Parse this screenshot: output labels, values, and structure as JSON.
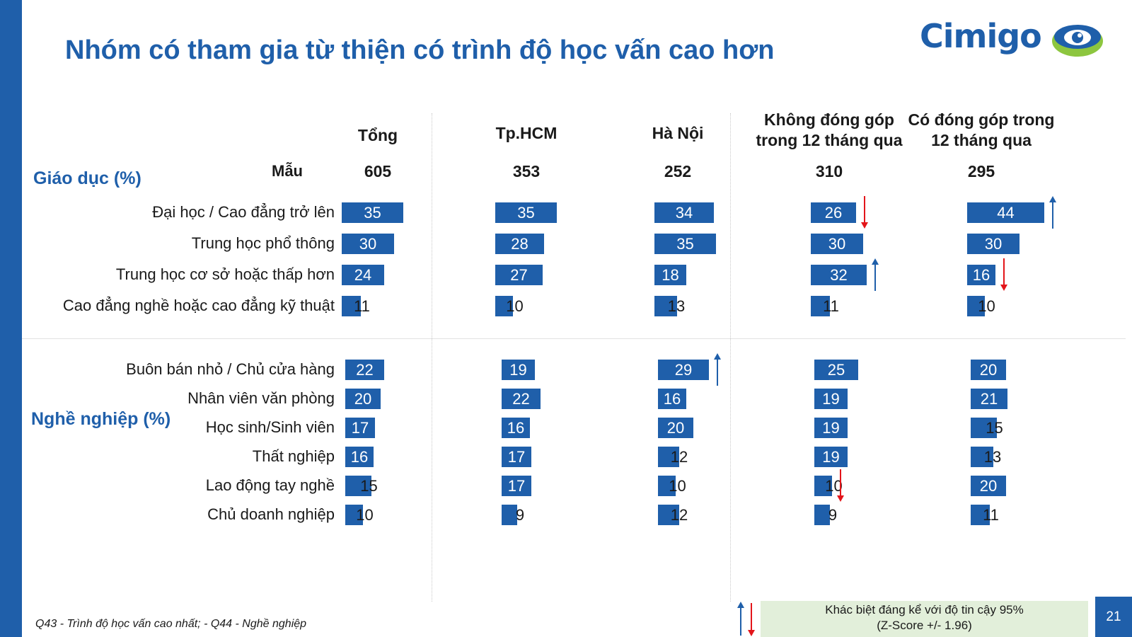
{
  "title": "Nhóm có tham gia từ thiện có trình độ học vấn cao hơn",
  "logo": {
    "text": "Cimigo",
    "icon": "eye-logo-icon"
  },
  "sample_label": "Mẫu",
  "columns": [
    {
      "label": "Tổng",
      "n": "605"
    },
    {
      "label": "Tp.HCM",
      "n": "353"
    },
    {
      "label": "Hà Nội",
      "n": "252"
    },
    {
      "label": "Không đóng góp\ntrong 12 tháng qua",
      "n": "310"
    },
    {
      "label": "Có đóng góp trong\n12 tháng qua",
      "n": "295"
    }
  ],
  "chart_data": {
    "type": "bar",
    "unit": "%",
    "sections": [
      {
        "title": "Giáo dục (%)",
        "rows": [
          {
            "label": "Đại học / Cao đẳng trở lên",
            "values": [
              35,
              35,
              34,
              26,
              44
            ],
            "sig": [
              "",
              "",
              "",
              "down",
              "up"
            ]
          },
          {
            "label": "Trung học phổ thông",
            "values": [
              30,
              28,
              35,
              30,
              30
            ],
            "sig": [
              "",
              "",
              "",
              "",
              ""
            ]
          },
          {
            "label": "Trung học cơ sở hoặc thấp hơn",
            "values": [
              24,
              27,
              18,
              32,
              16
            ],
            "sig": [
              "",
              "",
              "",
              "up",
              "down"
            ]
          },
          {
            "label": "Cao đẳng nghề hoặc cao đẳng kỹ thuật",
            "values": [
              11,
              10,
              13,
              11,
              10
            ],
            "sig": [
              "",
              "",
              "",
              "",
              ""
            ]
          }
        ]
      },
      {
        "title": "Nghề nghiệp (%)",
        "rows": [
          {
            "label": "Buôn bán nhỏ / Chủ cửa hàng",
            "values": [
              22,
              19,
              29,
              25,
              20
            ],
            "sig": [
              "",
              "",
              "up",
              "",
              ""
            ]
          },
          {
            "label": "Nhân viên văn phòng",
            "values": [
              20,
              22,
              16,
              19,
              21
            ],
            "sig": [
              "",
              "",
              "",
              "",
              ""
            ]
          },
          {
            "label": "Học sinh/Sinh viên",
            "values": [
              17,
              16,
              20,
              19,
              15
            ],
            "sig": [
              "",
              "",
              "",
              "",
              ""
            ]
          },
          {
            "label": "Thất nghiệp",
            "values": [
              16,
              17,
              12,
              19,
              13
            ],
            "sig": [
              "",
              "",
              "",
              "",
              ""
            ]
          },
          {
            "label": "Lao động tay nghề",
            "values": [
              15,
              17,
              10,
              10,
              20
            ],
            "sig": [
              "",
              "",
              "",
              "down",
              ""
            ]
          },
          {
            "label": "Chủ doanh nghiệp",
            "values": [
              10,
              9,
              12,
              9,
              11
            ],
            "sig": [
              "",
              "",
              "",
              "",
              ""
            ]
          }
        ]
      }
    ],
    "colors": {
      "bar": "#1f5faa",
      "up": "#1f5faa",
      "down": "#e3151a"
    }
  },
  "legend": {
    "line1": "Khác biệt đáng kể với độ tin cậy 95%",
    "line2": "(Z-Score +/- 1.96)"
  },
  "footnote": "Q43 - Trình độ học vấn cao nhất;  - Q44 - Nghề nghiệp",
  "page_number": "21"
}
